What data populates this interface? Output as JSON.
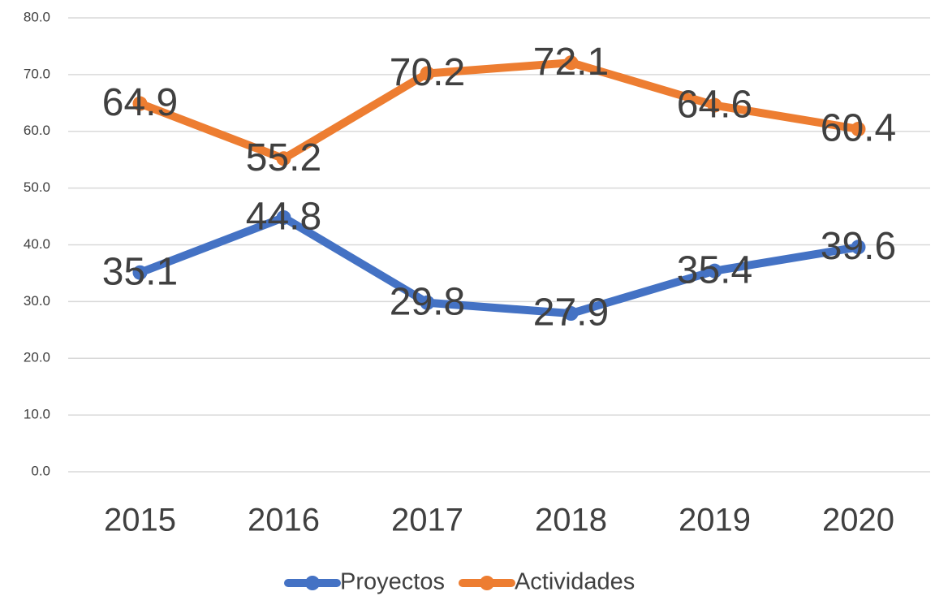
{
  "chart_data": {
    "type": "line",
    "categories": [
      "2015",
      "2016",
      "2017",
      "2018",
      "2019",
      "2020"
    ],
    "series": [
      {
        "name": "Proyectos",
        "color": "#4472c4",
        "values": [
          35.1,
          44.8,
          29.8,
          27.9,
          35.4,
          39.6
        ]
      },
      {
        "name": "Actividades",
        "color": "#ed7d31",
        "values": [
          64.9,
          55.2,
          70.2,
          72.1,
          64.6,
          60.4
        ]
      }
    ],
    "ylim": [
      0,
      80
    ],
    "yticks": [
      {
        "value": 0,
        "label": "0.0"
      },
      {
        "value": 10,
        "label": "10.0"
      },
      {
        "value": 20,
        "label": "20.0"
      },
      {
        "value": 30,
        "label": "30.0"
      },
      {
        "value": 40,
        "label": "40.0"
      },
      {
        "value": 50,
        "label": "50.0"
      },
      {
        "value": 60,
        "label": "60.0"
      },
      {
        "value": 70,
        "label": "70.0"
      },
      {
        "value": 80,
        "label": "80.0"
      }
    ],
    "grid": true,
    "legend": "bottom"
  }
}
